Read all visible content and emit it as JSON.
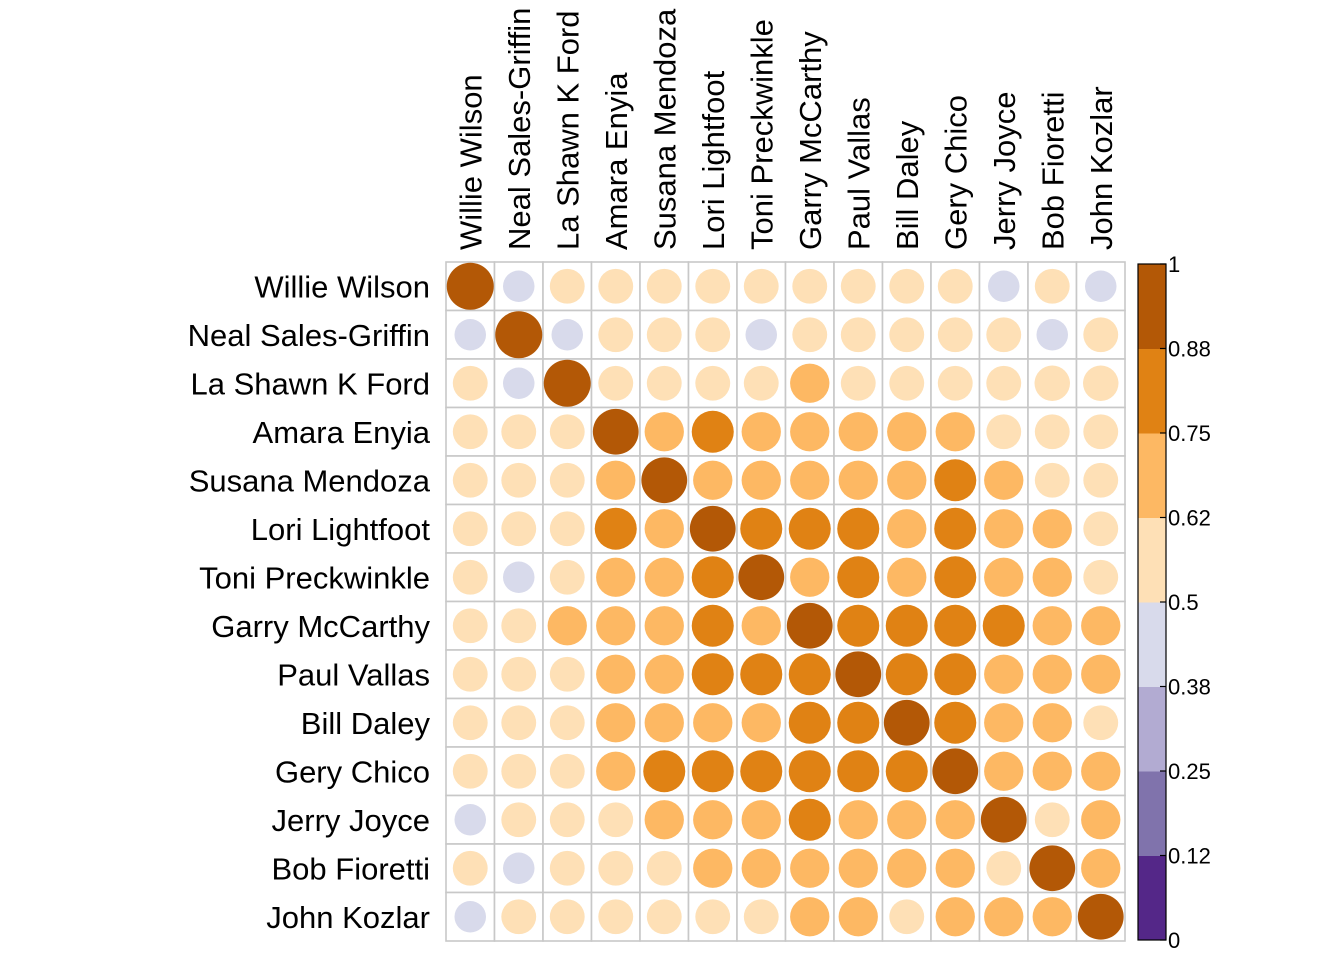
{
  "chart_data": {
    "type": "heatmap",
    "title": "",
    "variables": [
      "Willie Wilson",
      "Neal Sales-Griffin",
      "La Shawn K Ford",
      "Amara Enyia",
      "Susana Mendoza",
      "Lori Lightfoot",
      "Toni Preckwinkle",
      "Garry McCarthy",
      "Paul Vallas",
      "Bill Daley",
      "Gery Chico",
      "Jerry Joyce",
      "Bob Fioretti",
      "John Kozlar"
    ],
    "matrix": [
      [
        1.0,
        0.45,
        0.55,
        0.55,
        0.55,
        0.55,
        0.55,
        0.55,
        0.55,
        0.55,
        0.55,
        0.45,
        0.55,
        0.45
      ],
      [
        0.45,
        1.0,
        0.45,
        0.55,
        0.55,
        0.55,
        0.45,
        0.55,
        0.55,
        0.55,
        0.55,
        0.55,
        0.45,
        0.55
      ],
      [
        0.55,
        0.45,
        1.0,
        0.55,
        0.55,
        0.55,
        0.55,
        0.7,
        0.55,
        0.55,
        0.55,
        0.55,
        0.57,
        0.57
      ],
      [
        0.55,
        0.55,
        0.55,
        0.95,
        0.7,
        0.8,
        0.7,
        0.7,
        0.7,
        0.7,
        0.7,
        0.55,
        0.55,
        0.55
      ],
      [
        0.55,
        0.55,
        0.55,
        0.7,
        0.95,
        0.7,
        0.7,
        0.7,
        0.7,
        0.7,
        0.8,
        0.7,
        0.55,
        0.55
      ],
      [
        0.55,
        0.55,
        0.55,
        0.8,
        0.7,
        0.95,
        0.8,
        0.8,
        0.8,
        0.7,
        0.8,
        0.7,
        0.7,
        0.55
      ],
      [
        0.55,
        0.45,
        0.55,
        0.7,
        0.7,
        0.8,
        0.95,
        0.7,
        0.8,
        0.7,
        0.8,
        0.7,
        0.7,
        0.55
      ],
      [
        0.55,
        0.55,
        0.7,
        0.7,
        0.7,
        0.8,
        0.7,
        0.95,
        0.8,
        0.8,
        0.8,
        0.8,
        0.7,
        0.7
      ],
      [
        0.55,
        0.55,
        0.55,
        0.7,
        0.7,
        0.8,
        0.8,
        0.8,
        0.95,
        0.8,
        0.8,
        0.7,
        0.7,
        0.7
      ],
      [
        0.55,
        0.55,
        0.55,
        0.7,
        0.7,
        0.7,
        0.7,
        0.8,
        0.8,
        0.95,
        0.8,
        0.7,
        0.7,
        0.55
      ],
      [
        0.55,
        0.55,
        0.55,
        0.7,
        0.8,
        0.8,
        0.8,
        0.8,
        0.8,
        0.8,
        0.95,
        0.7,
        0.7,
        0.7
      ],
      [
        0.45,
        0.55,
        0.55,
        0.55,
        0.7,
        0.7,
        0.7,
        0.8,
        0.7,
        0.7,
        0.7,
        0.95,
        0.55,
        0.7
      ],
      [
        0.55,
        0.45,
        0.55,
        0.55,
        0.55,
        0.7,
        0.7,
        0.7,
        0.7,
        0.7,
        0.7,
        0.55,
        0.95,
        0.7
      ],
      [
        0.45,
        0.55,
        0.55,
        0.55,
        0.55,
        0.55,
        0.55,
        0.7,
        0.7,
        0.55,
        0.7,
        0.7,
        0.7,
        0.95
      ]
    ],
    "colorbar": {
      "min": 0,
      "max": 1,
      "ticks": [
        "0",
        "0.12",
        "0.25",
        "0.38",
        "0.5",
        "0.62",
        "0.75",
        "0.88",
        "1"
      ],
      "colors": [
        "#542788",
        "#8073ac",
        "#b2abd2",
        "#d8daeb",
        "#fee0b6",
        "#fdb863",
        "#e08214",
        "#b35806"
      ]
    },
    "grid": true,
    "glyph": "circle",
    "legend_position": "right"
  }
}
